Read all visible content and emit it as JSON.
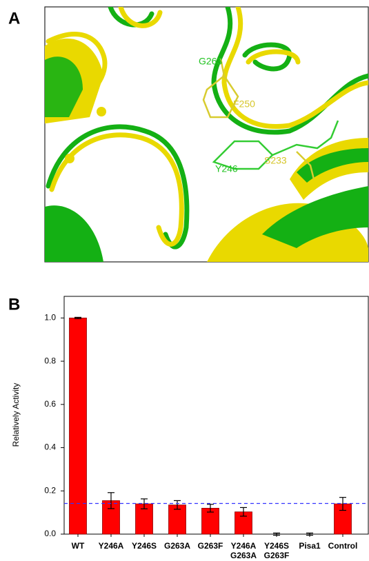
{
  "panel_a": {
    "label": "A",
    "annotations": [
      "G263",
      "F250",
      "Y246",
      "S233"
    ]
  },
  "chart_data": {
    "type": "bar",
    "panel_label": "B",
    "y_label": "Relatively Activity",
    "categories": [
      "WT",
      "Y246A",
      "Y246S",
      "G263A",
      "G263F",
      "Y246A\nG263A",
      "Y246S\nG263F",
      "Pisa1",
      "Control"
    ],
    "values": [
      1.0,
      0.155,
      0.14,
      0.135,
      0.12,
      0.103,
      0,
      0,
      0.14
    ],
    "errors": [
      0.003,
      0.037,
      0.023,
      0.02,
      0.018,
      0.02,
      0.005,
      0.005,
      0.03
    ],
    "color": "#ff0000",
    "ylim": [
      0,
      1.1
    ],
    "yticks": [
      {
        "value": 0,
        "label": "0.0"
      },
      0.2,
      0.4,
      0.6,
      0.8,
      {
        "value": 1,
        "label": "1.0"
      }
    ],
    "reference_line": 0.142,
    "reference_color": "#3333ff"
  }
}
